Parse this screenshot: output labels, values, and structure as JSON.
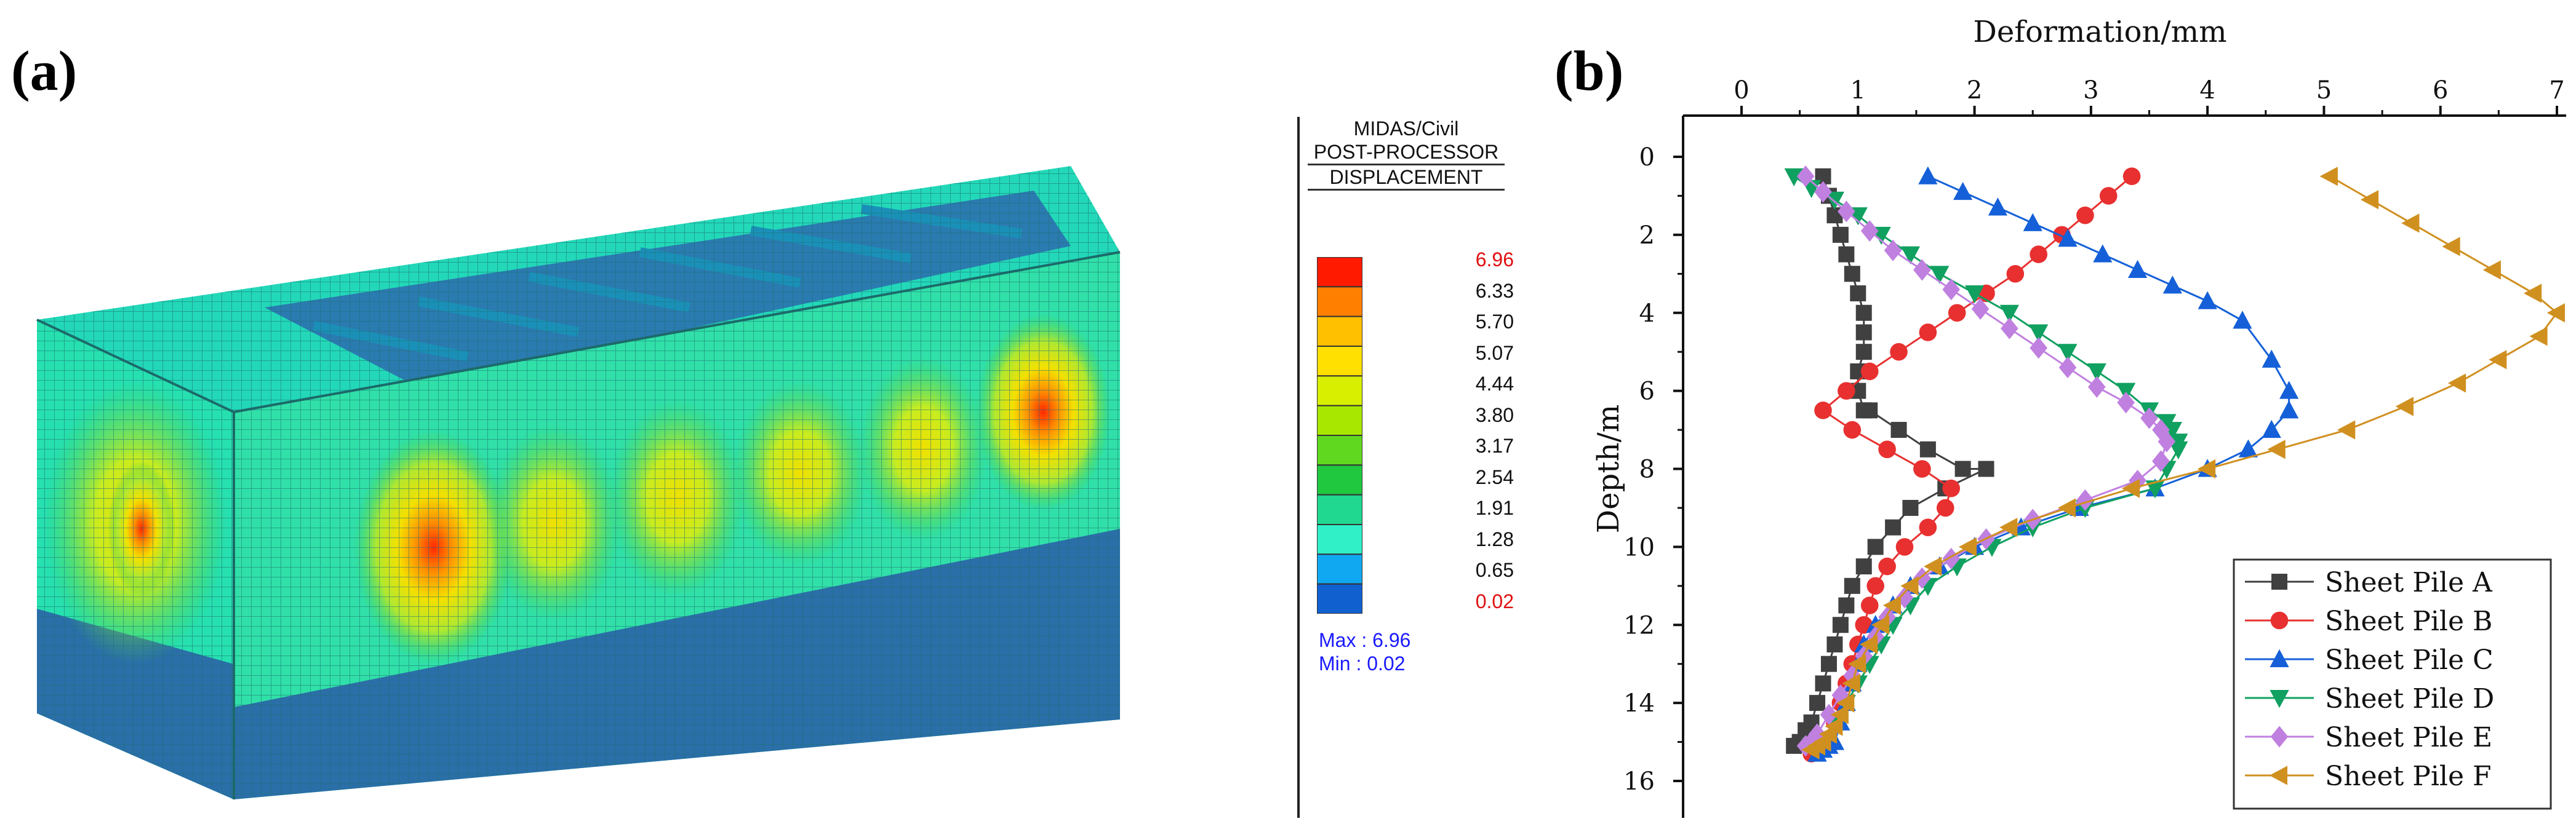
{
  "panels": {
    "a": "(a)",
    "b": "(b)"
  },
  "fea_legend": {
    "title_lines": [
      "MIDAS/Civil",
      "POST-PROCESSOR",
      "DISPLACEMENT"
    ],
    "values": [
      "6.96",
      "6.33",
      "5.70",
      "5.07",
      "4.44",
      "3.80",
      "3.17",
      "2.54",
      "1.91",
      "1.28",
      "0.65",
      "0.02"
    ],
    "band_colors": [
      "#ff1a00",
      "#ff8000",
      "#ffc000",
      "#ffe000",
      "#d8f000",
      "#a8e800",
      "#60d820",
      "#20c840",
      "#20d890",
      "#30f0c8",
      "#10a8f0",
      "#1060d0"
    ],
    "max_label": "Max : 6.96",
    "min_label": "Min : 0.02"
  },
  "chart_data": {
    "type": "line",
    "xlabel": "Deformation/mm",
    "ylabel": "Depth/m",
    "xlim": [
      -0.5,
      7
    ],
    "ylim": [
      -1,
      17
    ],
    "xticks": [
      0,
      1,
      2,
      3,
      4,
      5,
      6,
      7
    ],
    "yticks": [
      0,
      2,
      4,
      6,
      8,
      10,
      12,
      14,
      16
    ],
    "x_axis_position": "top",
    "y_axis_inverted": true,
    "legend_position": "bottom-right",
    "series": [
      {
        "name": "Sheet Pile A",
        "color": "#404040",
        "marker": "square",
        "x": [
          0.7,
          0.75,
          0.8,
          0.85,
          0.9,
          0.95,
          1.0,
          1.05,
          1.05,
          1.05,
          1.0,
          1.0,
          1.05,
          1.1,
          1.35,
          1.6,
          1.9,
          2.1,
          1.75,
          1.45,
          1.3,
          1.15,
          1.05,
          0.95,
          0.9,
          0.85,
          0.8,
          0.75,
          0.7,
          0.65,
          0.6,
          0.55,
          0.5,
          0.45
        ],
        "y": [
          0.5,
          1.0,
          1.5,
          2.0,
          2.5,
          3.0,
          3.5,
          4.0,
          4.5,
          5.0,
          5.5,
          6.0,
          6.5,
          6.5,
          7.0,
          7.5,
          8.0,
          8.0,
          8.5,
          9.0,
          9.5,
          10.0,
          10.5,
          11.0,
          11.5,
          12.0,
          12.5,
          13.0,
          13.5,
          14.0,
          14.5,
          14.7,
          15.0,
          15.1
        ]
      },
      {
        "name": "Sheet Pile B",
        "color": "#e83030",
        "marker": "circle",
        "x": [
          3.35,
          3.15,
          2.95,
          2.75,
          2.55,
          2.35,
          2.1,
          1.85,
          1.6,
          1.35,
          1.1,
          0.9,
          0.7,
          0.95,
          1.25,
          1.55,
          1.8,
          1.75,
          1.6,
          1.4,
          1.25,
          1.15,
          1.1,
          1.05,
          1.0,
          0.95,
          0.9,
          0.85,
          0.8,
          0.75,
          0.7,
          0.65,
          0.6
        ],
        "y": [
          0.5,
          1.0,
          1.5,
          2.0,
          2.5,
          3.0,
          3.5,
          4.0,
          4.5,
          5.0,
          5.5,
          6.0,
          6.5,
          7.0,
          7.5,
          8.0,
          8.5,
          9.0,
          9.5,
          10.0,
          10.5,
          11.0,
          11.5,
          12.0,
          12.5,
          13.0,
          13.5,
          14.0,
          14.5,
          15.0,
          15.1,
          15.2,
          15.3
        ]
      },
      {
        "name": "Sheet Pile C",
        "color": "#1560d8",
        "marker": "triangle-up",
        "x": [
          1.6,
          1.9,
          2.2,
          2.5,
          2.8,
          3.1,
          3.4,
          3.7,
          4.0,
          4.3,
          4.55,
          4.7,
          4.7,
          4.55,
          4.35,
          4.0,
          3.55,
          2.9,
          2.4,
          2.0,
          1.7,
          1.45,
          1.3,
          1.15,
          1.05,
          1.0,
          0.95,
          0.9,
          0.85,
          0.8,
          0.75,
          0.7,
          0.65
        ],
        "y": [
          0.5,
          0.9,
          1.3,
          1.7,
          2.1,
          2.5,
          2.9,
          3.3,
          3.7,
          4.2,
          5.2,
          6.0,
          6.5,
          7.0,
          7.5,
          8.0,
          8.5,
          9.0,
          9.5,
          10.0,
          10.5,
          11.0,
          11.5,
          12.0,
          12.5,
          13.0,
          13.5,
          14.0,
          14.5,
          15.0,
          15.1,
          15.2,
          15.3
        ]
      },
      {
        "name": "Sheet Pile D",
        "color": "#10a060",
        "marker": "triangle-down",
        "x": [
          0.45,
          0.6,
          0.8,
          1.0,
          1.2,
          1.45,
          1.7,
          2.0,
          2.3,
          2.55,
          2.8,
          3.05,
          3.3,
          3.5,
          3.65,
          3.7,
          3.75,
          3.75,
          3.65,
          3.55,
          2.95,
          2.5,
          2.15,
          1.85,
          1.6,
          1.45,
          1.3,
          1.2,
          1.1,
          1.0,
          0.9,
          0.8,
          0.7,
          0.6
        ],
        "y": [
          0.5,
          0.8,
          1.1,
          1.5,
          2.0,
          2.5,
          3.0,
          3.5,
          4.0,
          4.5,
          5.0,
          5.5,
          6.0,
          6.5,
          6.8,
          7.0,
          7.3,
          7.5,
          8.0,
          8.5,
          9.0,
          9.5,
          10.0,
          10.5,
          11.0,
          11.5,
          12.0,
          12.5,
          13.0,
          13.5,
          14.0,
          14.5,
          15.0,
          15.1
        ]
      },
      {
        "name": "Sheet Pile E",
        "color": "#c080e0",
        "marker": "diamond",
        "x": [
          0.55,
          0.7,
          0.9,
          1.1,
          1.3,
          1.55,
          1.8,
          2.05,
          2.3,
          2.55,
          2.8,
          3.05,
          3.3,
          3.5,
          3.6,
          3.65,
          3.6,
          3.4,
          2.95,
          2.5,
          2.1,
          1.8,
          1.55,
          1.4,
          1.25,
          1.15,
          1.05,
          0.95,
          0.85,
          0.75,
          0.65,
          0.6,
          0.55
        ],
        "y": [
          0.5,
          0.9,
          1.4,
          1.9,
          2.4,
          2.9,
          3.4,
          3.9,
          4.4,
          4.9,
          5.4,
          5.9,
          6.3,
          6.7,
          7.0,
          7.3,
          7.8,
          8.3,
          8.8,
          9.3,
          9.8,
          10.3,
          10.8,
          11.3,
          11.8,
          12.3,
          12.8,
          13.3,
          13.8,
          14.3,
          14.8,
          15.0,
          15.1
        ]
      },
      {
        "name": "Sheet Pile F",
        "color": "#d09020",
        "marker": "triangle-left",
        "x": [
          5.05,
          5.4,
          5.75,
          6.1,
          6.45,
          6.8,
          7.0,
          6.85,
          6.5,
          6.15,
          5.7,
          5.2,
          4.6,
          4.0,
          3.35,
          2.8,
          2.3,
          1.95,
          1.65,
          1.45,
          1.3,
          1.2,
          1.1,
          1.0,
          0.95,
          0.9,
          0.85,
          0.8,
          0.75,
          0.7,
          0.65,
          0.6
        ],
        "y": [
          0.5,
          1.1,
          1.7,
          2.3,
          2.9,
          3.5,
          4.0,
          4.6,
          5.2,
          5.8,
          6.4,
          7.0,
          7.5,
          8.0,
          8.5,
          9.0,
          9.5,
          10.0,
          10.5,
          11.0,
          11.5,
          12.0,
          12.5,
          13.0,
          13.5,
          14.0,
          14.3,
          14.6,
          14.8,
          15.0,
          15.1,
          15.2
        ]
      }
    ]
  }
}
